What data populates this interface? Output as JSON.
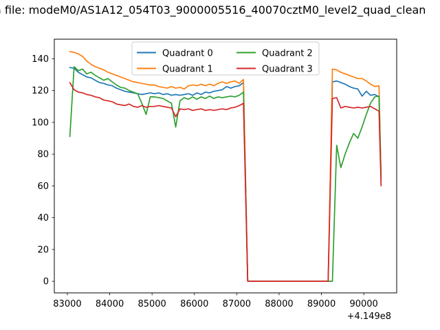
{
  "chart_data": {
    "type": "line",
    "title": "a file: modeM0/AS1A12_054T03_9000005516_40070cztM0_level2_quad_clean",
    "xlabel": "",
    "ylabel": "",
    "x_offset_label": "+4.149e8",
    "xlim": [
      82692,
      90777
    ],
    "ylim": [
      -7.3,
      152.3
    ],
    "xticks": [
      83000,
      84000,
      85000,
      86000,
      87000,
      88000,
      89000,
      90000
    ],
    "yticks": [
      0,
      20,
      40,
      60,
      80,
      100,
      120,
      140
    ],
    "grid": false,
    "legend": {
      "position": "upper center",
      "columns": 2
    },
    "x": [
      83059,
      83159,
      83259,
      83359,
      83459,
      83559,
      83659,
      83759,
      83859,
      83959,
      84059,
      84159,
      84259,
      84359,
      84459,
      84559,
      84659,
      84759,
      84859,
      84959,
      85059,
      85159,
      85259,
      85359,
      85459,
      85559,
      85659,
      85759,
      85859,
      85959,
      86059,
      86159,
      86259,
      86359,
      86459,
      86559,
      86659,
      86759,
      86859,
      86959,
      87059,
      87159,
      87259,
      87559,
      88059,
      88559,
      89059,
      89159,
      89259,
      89359,
      89459,
      89559,
      89659,
      89759,
      89859,
      89959,
      90059,
      90159,
      90259,
      90359,
      90409
    ],
    "series": [
      {
        "name": "Quadrant 0",
        "color": "#1f77b4",
        "values": [
          134.5,
          134,
          131.5,
          130,
          128.5,
          128,
          126.5,
          125,
          124.5,
          123.5,
          123,
          121.5,
          120.5,
          119.5,
          119,
          118.5,
          118,
          117.5,
          118,
          118.5,
          118,
          118.5,
          117.5,
          118,
          117,
          117.5,
          117,
          117.5,
          118,
          117,
          118.5,
          117.5,
          119,
          118.5,
          119.5,
          120,
          120.5,
          122.5,
          121.5,
          122.5,
          123,
          125,
          0,
          0,
          0,
          0,
          0,
          0,
          125.5,
          126,
          125,
          124,
          122.5,
          121.5,
          121,
          116.5,
          119.5,
          117,
          117.5,
          116,
          64
        ]
      },
      {
        "name": "Quadrant 1",
        "color": "#ff7f0e",
        "values": [
          144.5,
          144,
          143,
          141.5,
          138.5,
          136.5,
          135,
          134,
          133,
          131.5,
          130.5,
          129.5,
          128.5,
          127.5,
          126.5,
          125.5,
          125,
          124.5,
          124,
          123.5,
          123.5,
          122.5,
          122,
          121.5,
          122.5,
          121.5,
          122,
          121,
          123,
          123.5,
          123,
          124,
          123,
          124,
          123,
          124.5,
          125.5,
          124.5,
          125.5,
          126,
          124.5,
          127,
          0,
          0,
          0,
          0,
          0,
          0,
          133.5,
          133,
          131.5,
          130.5,
          129.5,
          128.5,
          127.5,
          127.5,
          126,
          124,
          122.5,
          123,
          65
        ]
      },
      {
        "name": "Quadrant 2",
        "color": "#2ca02c",
        "values": [
          91,
          135,
          132.5,
          133.5,
          130.5,
          131.5,
          129.5,
          128,
          126.5,
          127.5,
          125.5,
          123.5,
          122,
          121.5,
          120,
          119,
          118,
          112,
          105,
          116,
          116,
          115.5,
          115,
          113.5,
          112,
          97,
          113.5,
          115.5,
          114.5,
          116,
          114.5,
          116,
          115,
          116.5,
          115,
          116,
          115.5,
          116,
          116.5,
          116,
          117,
          119,
          0,
          0,
          0,
          0,
          0,
          0,
          0,
          85.5,
          71.5,
          80,
          87,
          93,
          90,
          97,
          105,
          112,
          116,
          116.5,
          66
        ]
      },
      {
        "name": "Quadrant 3",
        "color": "#d62728",
        "values": [
          125,
          120.5,
          119,
          118.5,
          117.5,
          117,
          116,
          115.5,
          114,
          113.5,
          113,
          111.5,
          111,
          110.5,
          111.5,
          110,
          109.5,
          110.5,
          109.5,
          110,
          110,
          110.5,
          110,
          109.5,
          109,
          103.5,
          108.5,
          108,
          108.5,
          107.5,
          108,
          108.5,
          107.5,
          108,
          107.5,
          108,
          108.5,
          108,
          109,
          109.5,
          110.5,
          112,
          0,
          0,
          0,
          0,
          0,
          0,
          115,
          115.5,
          109,
          110,
          109.5,
          109,
          109.5,
          109,
          109.5,
          110,
          108.5,
          107,
          60
        ]
      }
    ]
  }
}
